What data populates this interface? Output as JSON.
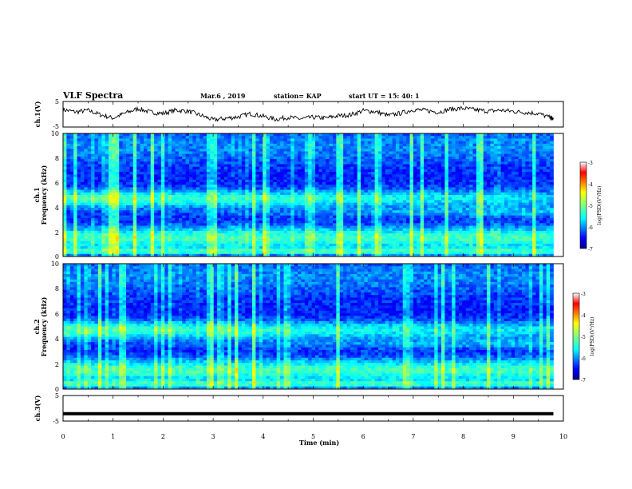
{
  "header": {
    "title": "VLF Spectra",
    "date": "Mar.6 , 2019",
    "station": "station= KAP",
    "start": "start UT = 15: 40: 1"
  },
  "chart_data": [
    {
      "type": "line",
      "panel": "top",
      "ylabel": "ch.1(V)",
      "ylim": [
        -5,
        5
      ],
      "yticks": [
        "5",
        "-5"
      ],
      "xlim": [
        0,
        10
      ],
      "color": "#000000",
      "series": [
        {
          "x": [
            0,
            0.25,
            0.5,
            0.75,
            1,
            1.25,
            1.5,
            1.75,
            2,
            2.25,
            2.5,
            2.75,
            3,
            3.25,
            3.5,
            3.75,
            4,
            4.25,
            4.5,
            4.75,
            5,
            5.25,
            5.5,
            5.75,
            6,
            6.25,
            6.5,
            6.75,
            7,
            7.25,
            7.5,
            7.75,
            8,
            8.25,
            8.5,
            8.75,
            9,
            9.25,
            9.5,
            9.75,
            9.8
          ],
          "values": [
            1.8,
            0.9,
            1.5,
            -0.2,
            -1.5,
            0.5,
            2.2,
            0.8,
            0.3,
            1.6,
            1.2,
            -0.4,
            -2.2,
            -1.6,
            -1.0,
            0.2,
            -0.8,
            -2.0,
            -1.2,
            -1.8,
            -1.2,
            -1.5,
            -0.6,
            -0.2,
            1.4,
            1.0,
            -0.5,
            0.4,
            1.8,
            1.5,
            0.8,
            2.0,
            2.3,
            1.7,
            1.2,
            1.6,
            1.1,
            0.7,
            0.3,
            -1.4,
            -1.9
          ]
        }
      ]
    },
    {
      "type": "heatmap",
      "panel": "ch.1",
      "ylabel_line1": "ch.1",
      "ylabel_line2": "Frequency (kHz)",
      "ylim": [
        0,
        10
      ],
      "yticks": [
        "0",
        "2",
        "4",
        "6",
        "8",
        "10"
      ],
      "xlim": [
        0,
        9.8
      ],
      "colorbar": {
        "label": "log(PSD)(V²/Hz)",
        "range": [
          -7,
          -3
        ],
        "ticks": [
          "-3",
          "-4",
          "-5",
          "-6",
          "-7"
        ]
      }
    },
    {
      "type": "heatmap",
      "panel": "ch.2",
      "ylabel_line1": "ch.2",
      "ylabel_line2": "Frequency (kHz)",
      "ylim": [
        0,
        10
      ],
      "yticks": [
        "0",
        "2",
        "4",
        "6",
        "8",
        "10"
      ],
      "xlim": [
        0,
        9.8
      ],
      "colorbar": {
        "label": "log(PSD)(V²/Hz)",
        "range": [
          -7,
          -3
        ],
        "ticks": [
          "-3",
          "-4",
          "-5",
          "-6",
          "-7"
        ]
      }
    },
    {
      "type": "line",
      "panel": "bottom",
      "ylabel": "ch.3(V)",
      "ylim": [
        -5,
        5
      ],
      "yticks": [
        "5",
        "-5"
      ],
      "xlim": [
        0,
        10
      ],
      "xlabel": "Time (min)",
      "xticks": [
        "0",
        "1",
        "2",
        "3",
        "4",
        "5",
        "6",
        "7",
        "8",
        "9",
        "10"
      ],
      "color": "#000000",
      "series": [
        {
          "x": [
            0,
            9.8
          ],
          "values": [
            -2.1,
            -2.1
          ]
        }
      ]
    }
  ]
}
